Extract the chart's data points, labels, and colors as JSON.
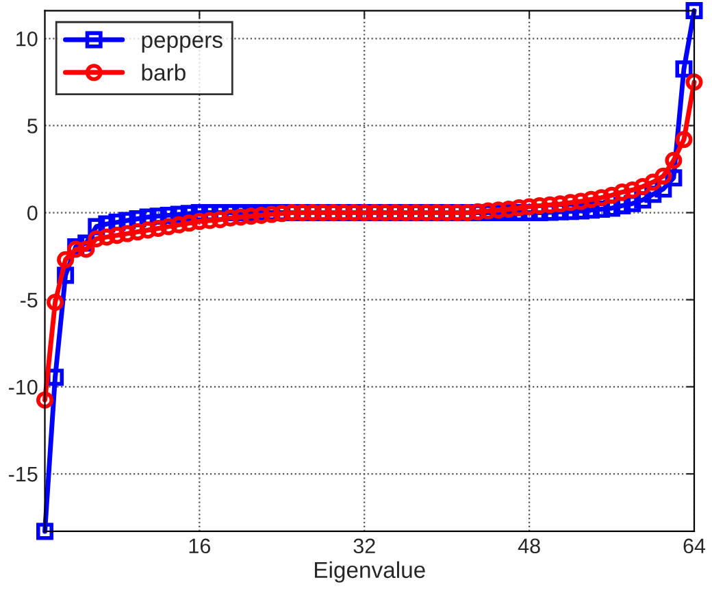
{
  "chart_data": {
    "type": "line",
    "xlabel": "Eigenvalue",
    "x": [
      1,
      2,
      3,
      4,
      5,
      6,
      7,
      8,
      9,
      10,
      11,
      12,
      13,
      14,
      15,
      16,
      17,
      18,
      19,
      20,
      21,
      22,
      23,
      24,
      25,
      26,
      27,
      28,
      29,
      30,
      31,
      32,
      33,
      34,
      35,
      36,
      37,
      38,
      39,
      40,
      41,
      42,
      43,
      44,
      45,
      46,
      47,
      48,
      49,
      50,
      51,
      52,
      53,
      54,
      55,
      56,
      57,
      58,
      59,
      60,
      61,
      62,
      63,
      64
    ],
    "series": [
      {
        "name": "peppers",
        "color": "#0000ff",
        "marker": "square",
        "values": [
          -18.3,
          -9.45,
          -3.6,
          -1.96,
          -1.75,
          -0.8,
          -0.65,
          -0.55,
          -0.45,
          -0.35,
          -0.25,
          -0.2,
          -0.15,
          -0.1,
          -0.05,
          0,
          0,
          0,
          0,
          0,
          0,
          0,
          0,
          0,
          0,
          0,
          0,
          0,
          0,
          0,
          0,
          0,
          0,
          0,
          0,
          0,
          0,
          0,
          0,
          0,
          0,
          0,
          0,
          0,
          0,
          0,
          0,
          0,
          0,
          0.02,
          0.05,
          0.07,
          0.1,
          0.15,
          0.2,
          0.26,
          0.4,
          0.52,
          0.73,
          1.05,
          1.36,
          2.0,
          8.25,
          11.6
        ]
      },
      {
        "name": "barb",
        "color": "#ff0000",
        "marker": "circle",
        "values": [
          -10.76,
          -5.15,
          -2.7,
          -2.1,
          -2.1,
          -1.5,
          -1.4,
          -1.3,
          -1.2,
          -1.1,
          -1.0,
          -0.9,
          -0.8,
          -0.7,
          -0.6,
          -0.5,
          -0.45,
          -0.4,
          -0.3,
          -0.25,
          -0.2,
          -0.15,
          -0.1,
          -0.05,
          0,
          0,
          0,
          0,
          0,
          0,
          0,
          0,
          0,
          0,
          0,
          0,
          0,
          0,
          0,
          0,
          0,
          0,
          0.05,
          0.1,
          0.15,
          0.2,
          0.28,
          0.34,
          0.4,
          0.45,
          0.5,
          0.58,
          0.65,
          0.76,
          0.86,
          1.0,
          1.18,
          1.3,
          1.5,
          1.75,
          2.1,
          3.0,
          4.2,
          7.5
        ]
      }
    ],
    "xlim": [
      1,
      64
    ],
    "ylim": [
      -18.3,
      11.6
    ],
    "xticks": [
      16,
      32,
      48,
      64
    ],
    "yticks": [
      -15,
      -10,
      -5,
      0,
      5,
      10
    ],
    "grid": true,
    "legend": "top left",
    "line_style": "solid"
  }
}
